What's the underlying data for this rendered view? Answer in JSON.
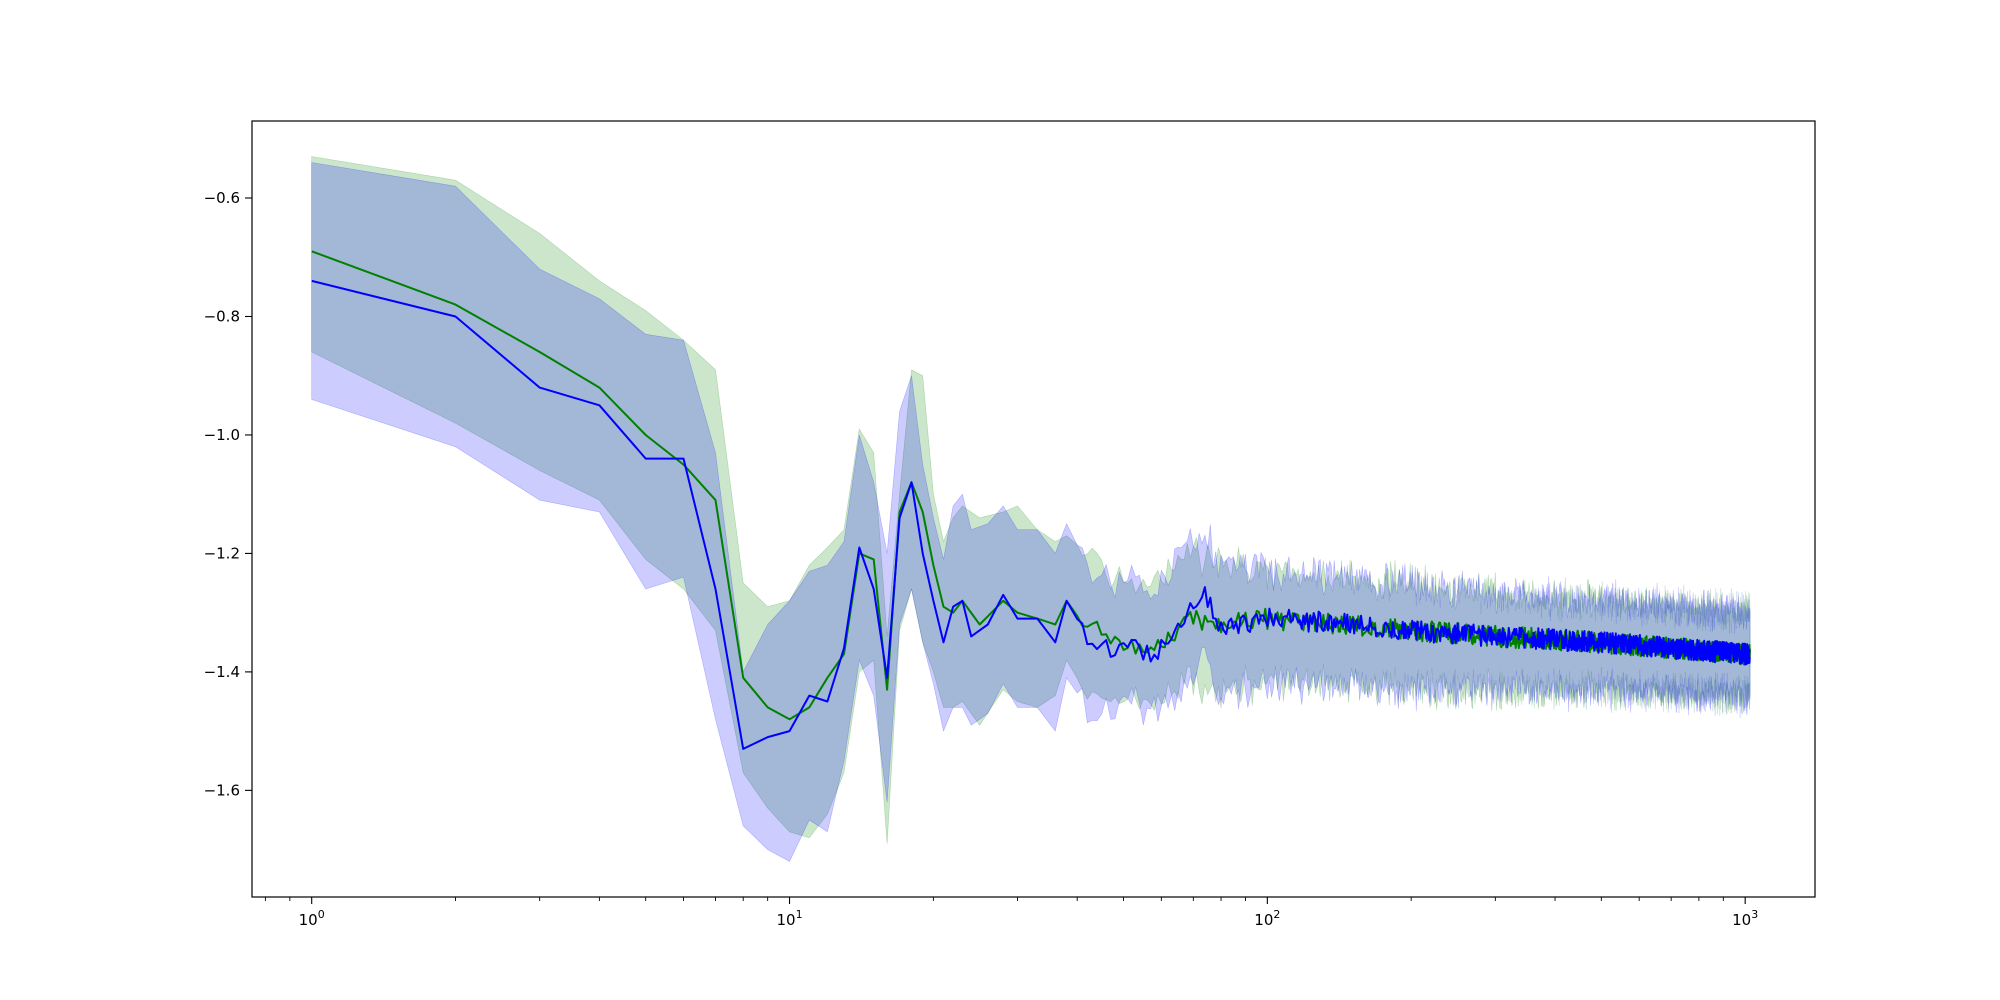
{
  "chart_data": {
    "type": "line",
    "xscale": "log",
    "xlim": [
      0.75,
      1400
    ],
    "ylim": [
      -1.78,
      -0.47
    ],
    "grid": false,
    "legend": "none",
    "x_ticks": [
      1,
      10,
      100,
      1000
    ],
    "x_tick_labels": [
      {
        "base": "10",
        "exp": "0"
      },
      {
        "base": "10",
        "exp": "1"
      },
      {
        "base": "10",
        "exp": "2"
      },
      {
        "base": "10",
        "exp": "3"
      }
    ],
    "y_ticks": [
      -1.6,
      -1.4,
      -1.2,
      -1.0,
      -0.8,
      -0.6
    ],
    "y_tick_labels": [
      "−1.6",
      "−1.4",
      "−1.2",
      "−1.0",
      "−0.8",
      "−0.6"
    ],
    "series": [
      {
        "color": "#008000",
        "band_color": "#008000",
        "band_opacity": 0.2,
        "mean_anchors": [
          [
            1,
            -0.69
          ],
          [
            2,
            -0.78
          ],
          [
            3,
            -0.86
          ],
          [
            4,
            -0.92
          ],
          [
            5,
            -1.0
          ],
          [
            6,
            -1.05
          ],
          [
            7,
            -1.11
          ],
          [
            8,
            -1.41
          ],
          [
            9,
            -1.46
          ],
          [
            10,
            -1.48
          ],
          [
            11,
            -1.46
          ],
          [
            12,
            -1.41
          ],
          [
            13,
            -1.37
          ],
          [
            14,
            -1.2
          ],
          [
            15,
            -1.21
          ],
          [
            16,
            -1.43
          ],
          [
            17,
            -1.13
          ],
          [
            18,
            -1.08
          ],
          [
            19,
            -1.13
          ],
          [
            20,
            -1.22
          ],
          [
            21,
            -1.29
          ],
          [
            22,
            -1.3
          ],
          [
            23,
            -1.28
          ],
          [
            25,
            -1.32
          ],
          [
            28,
            -1.28
          ],
          [
            30,
            -1.3
          ],
          [
            33,
            -1.31
          ],
          [
            36,
            -1.32
          ],
          [
            38,
            -1.28
          ],
          [
            42,
            -1.33
          ],
          [
            45,
            -1.33
          ],
          [
            50,
            -1.36
          ],
          [
            55,
            -1.36
          ],
          [
            60,
            -1.35
          ],
          [
            70,
            -1.31
          ],
          [
            80,
            -1.32
          ],
          [
            100,
            -1.31
          ],
          [
            150,
            -1.32
          ],
          [
            200,
            -1.33
          ],
          [
            300,
            -1.34
          ],
          [
            500,
            -1.35
          ],
          [
            1000,
            -1.37
          ]
        ],
        "upper_anchors": [
          [
            1,
            -0.53
          ],
          [
            2,
            -0.57
          ],
          [
            3,
            -0.66
          ],
          [
            4,
            -0.74
          ],
          [
            5,
            -0.79
          ],
          [
            6,
            -0.84
          ],
          [
            7,
            -0.89
          ],
          [
            8,
            -1.25
          ],
          [
            9,
            -1.29
          ],
          [
            10,
            -1.28
          ],
          [
            11,
            -1.22
          ],
          [
            12,
            -1.19
          ],
          [
            13,
            -1.16
          ],
          [
            14,
            -0.99
          ],
          [
            15,
            -1.03
          ],
          [
            16,
            -1.34
          ],
          [
            17,
            -1.1
          ],
          [
            18,
            -0.89
          ],
          [
            19,
            -0.9
          ],
          [
            20,
            -1.1
          ],
          [
            21,
            -1.18
          ],
          [
            22,
            -1.14
          ],
          [
            23,
            -1.12
          ],
          [
            25,
            -1.14
          ],
          [
            28,
            -1.13
          ],
          [
            30,
            -1.12
          ],
          [
            33,
            -1.16
          ],
          [
            36,
            -1.18
          ],
          [
            38,
            -1.17
          ],
          [
            42,
            -1.2
          ],
          [
            45,
            -1.22
          ],
          [
            50,
            -1.25
          ],
          [
            55,
            -1.25
          ],
          [
            60,
            -1.24
          ],
          [
            70,
            -1.2
          ],
          [
            80,
            -1.21
          ],
          [
            100,
            -1.23
          ],
          [
            150,
            -1.24
          ],
          [
            200,
            -1.25
          ],
          [
            300,
            -1.27
          ],
          [
            500,
            -1.28
          ],
          [
            1000,
            -1.3
          ]
        ],
        "lower_anchors": [
          [
            1,
            -0.86
          ],
          [
            2,
            -0.98
          ],
          [
            3,
            -1.06
          ],
          [
            4,
            -1.11
          ],
          [
            5,
            -1.21
          ],
          [
            6,
            -1.26
          ],
          [
            7,
            -1.33
          ],
          [
            8,
            -1.57
          ],
          [
            9,
            -1.63
          ],
          [
            10,
            -1.67
          ],
          [
            11,
            -1.68
          ],
          [
            12,
            -1.64
          ],
          [
            13,
            -1.57
          ],
          [
            14,
            -1.4
          ],
          [
            15,
            -1.38
          ],
          [
            16,
            -1.69
          ],
          [
            17,
            -1.33
          ],
          [
            18,
            -1.26
          ],
          [
            19,
            -1.35
          ],
          [
            20,
            -1.4
          ],
          [
            21,
            -1.46
          ],
          [
            22,
            -1.46
          ],
          [
            23,
            -1.45
          ],
          [
            25,
            -1.49
          ],
          [
            28,
            -1.43
          ],
          [
            30,
            -1.45
          ],
          [
            33,
            -1.46
          ],
          [
            36,
            -1.44
          ],
          [
            38,
            -1.38
          ],
          [
            42,
            -1.44
          ],
          [
            45,
            -1.44
          ],
          [
            50,
            -1.46
          ],
          [
            55,
            -1.45
          ],
          [
            60,
            -1.44
          ],
          [
            70,
            -1.42
          ],
          [
            80,
            -1.43
          ],
          [
            100,
            -1.42
          ],
          [
            150,
            -1.42
          ],
          [
            200,
            -1.43
          ],
          [
            300,
            -1.43
          ],
          [
            500,
            -1.43
          ],
          [
            1000,
            -1.44
          ]
        ],
        "noise": 0.018,
        "seed": 7
      },
      {
        "color": "#0000ff",
        "band_color": "#0000ff",
        "band_opacity": 0.2,
        "mean_anchors": [
          [
            1,
            -0.74
          ],
          [
            2,
            -0.8
          ],
          [
            3,
            -0.92
          ],
          [
            4,
            -0.95
          ],
          [
            5,
            -1.04
          ],
          [
            6,
            -1.04
          ],
          [
            7,
            -1.26
          ],
          [
            8,
            -1.53
          ],
          [
            9,
            -1.51
          ],
          [
            10,
            -1.5
          ],
          [
            11,
            -1.44
          ],
          [
            12,
            -1.45
          ],
          [
            13,
            -1.36
          ],
          [
            14,
            -1.19
          ],
          [
            15,
            -1.26
          ],
          [
            16,
            -1.41
          ],
          [
            17,
            -1.14
          ],
          [
            18,
            -1.08
          ],
          [
            19,
            -1.2
          ],
          [
            20,
            -1.28
          ],
          [
            21,
            -1.35
          ],
          [
            22,
            -1.29
          ],
          [
            23,
            -1.28
          ],
          [
            24,
            -1.34
          ],
          [
            26,
            -1.32
          ],
          [
            28,
            -1.27
          ],
          [
            30,
            -1.31
          ],
          [
            33,
            -1.31
          ],
          [
            36,
            -1.35
          ],
          [
            38,
            -1.28
          ],
          [
            42,
            -1.34
          ],
          [
            46,
            -1.36
          ],
          [
            52,
            -1.36
          ],
          [
            58,
            -1.37
          ],
          [
            65,
            -1.32
          ],
          [
            74,
            -1.27
          ],
          [
            80,
            -1.33
          ],
          [
            100,
            -1.31
          ],
          [
            150,
            -1.32
          ],
          [
            200,
            -1.33
          ],
          [
            300,
            -1.34
          ],
          [
            500,
            -1.35
          ],
          [
            1000,
            -1.37
          ]
        ],
        "upper_anchors": [
          [
            1,
            -0.54
          ],
          [
            2,
            -0.58
          ],
          [
            3,
            -0.72
          ],
          [
            4,
            -0.77
          ],
          [
            5,
            -0.83
          ],
          [
            6,
            -0.84
          ],
          [
            7,
            -1.03
          ],
          [
            8,
            -1.4
          ],
          [
            9,
            -1.32
          ],
          [
            10,
            -1.28
          ],
          [
            11,
            -1.23
          ],
          [
            12,
            -1.22
          ],
          [
            13,
            -1.18
          ],
          [
            14,
            -1.0
          ],
          [
            15,
            -1.08
          ],
          [
            16,
            -1.2
          ],
          [
            17,
            -0.96
          ],
          [
            18,
            -0.9
          ],
          [
            19,
            -1.05
          ],
          [
            20,
            -1.14
          ],
          [
            21,
            -1.21
          ],
          [
            22,
            -1.12
          ],
          [
            23,
            -1.1
          ],
          [
            24,
            -1.16
          ],
          [
            26,
            -1.15
          ],
          [
            28,
            -1.12
          ],
          [
            30,
            -1.16
          ],
          [
            33,
            -1.16
          ],
          [
            36,
            -1.2
          ],
          [
            38,
            -1.15
          ],
          [
            42,
            -1.22
          ],
          [
            46,
            -1.25
          ],
          [
            52,
            -1.25
          ],
          [
            58,
            -1.26
          ],
          [
            65,
            -1.2
          ],
          [
            74,
            -1.17
          ],
          [
            80,
            -1.22
          ],
          [
            100,
            -1.23
          ],
          [
            150,
            -1.24
          ],
          [
            200,
            -1.25
          ],
          [
            300,
            -1.27
          ],
          [
            500,
            -1.28
          ],
          [
            1000,
            -1.3
          ]
        ],
        "lower_anchors": [
          [
            1,
            -0.94
          ],
          [
            2,
            -1.02
          ],
          [
            3,
            -1.11
          ],
          [
            4,
            -1.13
          ],
          [
            5,
            -1.26
          ],
          [
            6,
            -1.24
          ],
          [
            7,
            -1.48
          ],
          [
            8,
            -1.66
          ],
          [
            9,
            -1.7
          ],
          [
            10,
            -1.72
          ],
          [
            11,
            -1.65
          ],
          [
            12,
            -1.67
          ],
          [
            13,
            -1.55
          ],
          [
            14,
            -1.38
          ],
          [
            15,
            -1.44
          ],
          [
            16,
            -1.62
          ],
          [
            17,
            -1.32
          ],
          [
            18,
            -1.26
          ],
          [
            19,
            -1.35
          ],
          [
            20,
            -1.42
          ],
          [
            21,
            -1.5
          ],
          [
            22,
            -1.46
          ],
          [
            23,
            -1.46
          ],
          [
            24,
            -1.49
          ],
          [
            26,
            -1.47
          ],
          [
            28,
            -1.42
          ],
          [
            30,
            -1.46
          ],
          [
            33,
            -1.46
          ],
          [
            36,
            -1.5
          ],
          [
            38,
            -1.41
          ],
          [
            42,
            -1.46
          ],
          [
            46,
            -1.47
          ],
          [
            52,
            -1.46
          ],
          [
            58,
            -1.46
          ],
          [
            65,
            -1.44
          ],
          [
            74,
            -1.37
          ],
          [
            80,
            -1.44
          ],
          [
            100,
            -1.42
          ],
          [
            150,
            -1.42
          ],
          [
            200,
            -1.43
          ],
          [
            300,
            -1.43
          ],
          [
            500,
            -1.43
          ],
          [
            1000,
            -1.44
          ]
        ],
        "noise": 0.018,
        "seed": 13
      }
    ],
    "x_max": 1024
  }
}
